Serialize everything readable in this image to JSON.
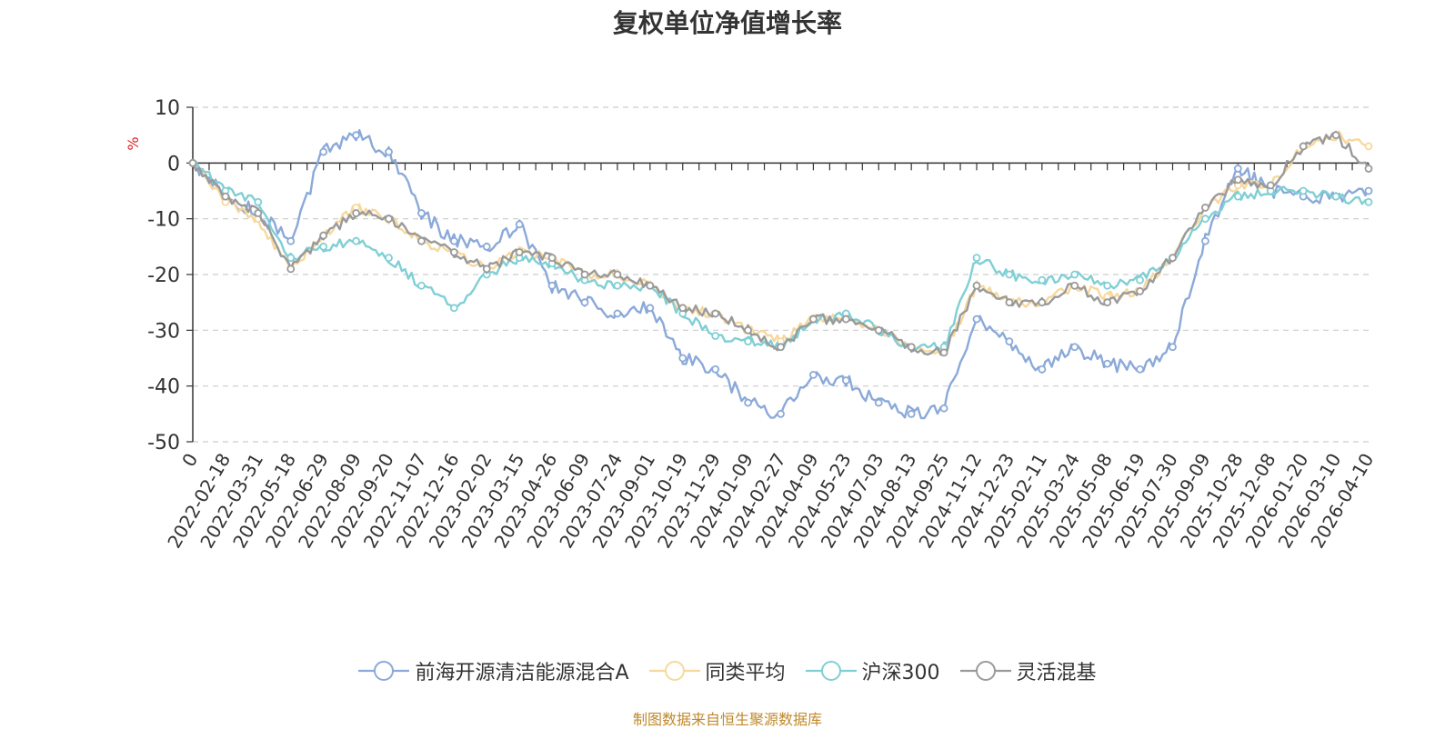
{
  "chart_data": {
    "type": "line",
    "title": "复权单位净值增长率",
    "ylabel": "%",
    "xlabel": "",
    "ylim": [
      -50,
      10
    ],
    "yticks": [
      10,
      0,
      -10,
      -20,
      -30,
      -40,
      -50
    ],
    "grid": true,
    "legend_position": "bottom-center",
    "categories": [
      "0",
      "2022-02-18",
      "2022-03-31",
      "2022-05-18",
      "2022-06-29",
      "2022-08-09",
      "2022-09-20",
      "2022-11-07",
      "2022-12-16",
      "2023-02-02",
      "2023-03-15",
      "2023-04-26",
      "2023-06-09",
      "2023-07-24",
      "2023-09-01",
      "2023-10-19",
      "2023-11-29",
      "2024-01-09",
      "2024-02-27",
      "2024-04-09",
      "2024-05-23",
      "2024-07-03",
      "2024-08-13",
      "2024-09-25",
      "2024-11-12",
      "2024-12-23",
      "2025-02-11",
      "2025-03-24",
      "2025-05-08",
      "2025-06-19",
      "2025-07-30",
      "2025-09-09",
      "2025-10-28",
      "2025-12-08",
      "2026-01-20",
      "2026-03-10",
      "2026-04-10"
    ],
    "series": [
      {
        "name": "前海开源清洁能源混合A",
        "color": "#8ba9d9",
        "values": [
          0,
          -6,
          -9,
          -14,
          2,
          5,
          2,
          -9,
          -14,
          -15,
          -11,
          -22,
          -25,
          -27,
          -26,
          -35,
          -37,
          -43,
          -45,
          -38,
          -39,
          -43,
          -45,
          -44,
          -28,
          -32,
          -37,
          -33,
          -36,
          -37,
          -33,
          -14,
          -1,
          -5,
          -6,
          -6,
          -5
        ]
      },
      {
        "name": "同类平均",
        "color": "#f7d89c",
        "values": [
          0,
          -7,
          -10,
          -19,
          -13,
          -8,
          -10,
          -14,
          -16,
          -19,
          -16,
          -17,
          -20,
          -20,
          -22,
          -26,
          -27,
          -30,
          -32,
          -28,
          -28,
          -30,
          -33,
          -34,
          -22,
          -25,
          -25,
          -22,
          -24,
          -23,
          -17,
          -8,
          -4,
          -4,
          3,
          5,
          3
        ]
      },
      {
        "name": "沪深300",
        "color": "#7fcfd5",
        "values": [
          0,
          -5,
          -7,
          -17,
          -15,
          -14,
          -17,
          -22,
          -26,
          -20,
          -17,
          -18,
          -21,
          -22,
          -22,
          -27,
          -31,
          -32,
          -33,
          -28,
          -27,
          -30,
          -33,
          -33,
          -17,
          -20,
          -21,
          -20,
          -22,
          -21,
          -17,
          -10,
          -6,
          -5,
          -5,
          -6,
          -7
        ]
      },
      {
        "name": "灵活混基",
        "color": "#9a9a9a",
        "values": [
          0,
          -6,
          -9,
          -19,
          -13,
          -9,
          -10,
          -14,
          -16,
          -19,
          -16,
          -17,
          -20,
          -20,
          -22,
          -26,
          -27,
          -30,
          -33,
          -28,
          -28,
          -30,
          -33,
          -34,
          -22,
          -25,
          -25,
          -22,
          -25,
          -23,
          -17,
          -8,
          -3,
          -4,
          3,
          5,
          -1
        ]
      }
    ]
  },
  "source_note": "制图数据来自恒生聚源数据库"
}
